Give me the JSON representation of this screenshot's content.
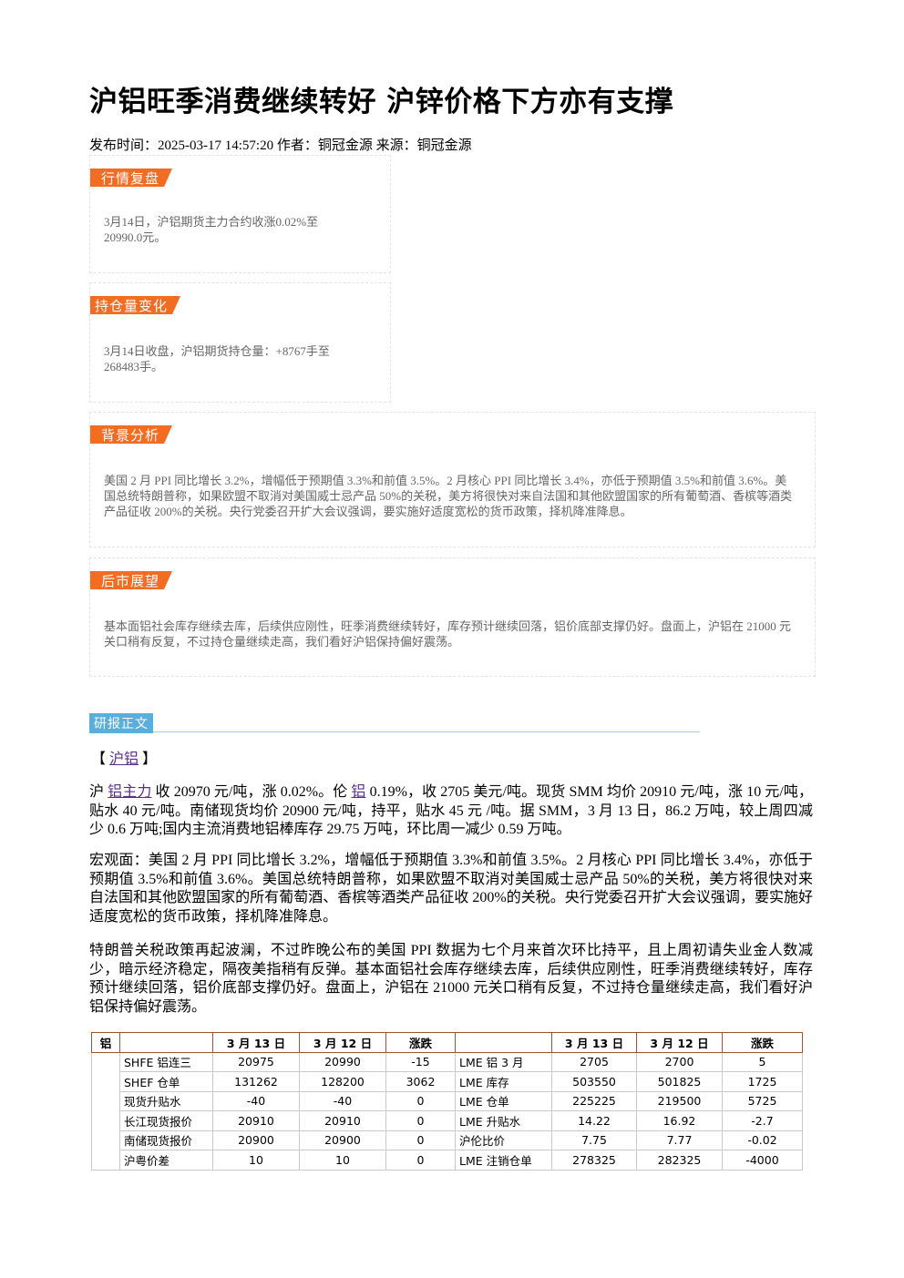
{
  "header": {
    "title": "沪铝旺季消费继续转好 沪锌价格下方亦有支撑",
    "meta": "发布时间：2025-03-17 14:57:20 作者：铜冠金源 来源：铜冠金源"
  },
  "sections": [
    {
      "heading": "行情复盘",
      "text": "3月14日，沪铝期货主力合约收涨0.02%至20990.0元。"
    },
    {
      "heading": "持仓量变化",
      "text": "3月14日收盘，沪铝期货持仓量：+8767手至268483手。"
    },
    {
      "heading": "背景分析",
      "text": "美国 2 月 PPI 同比增长 3.2%，增幅低于预期值 3.3%和前值 3.5%。2 月核心 PPI 同比增长 3.4%，亦低于预期值 3.5%和前值 3.6%。美国总统特朗普称，如果欧盟不取消对美国威士忌产品 50%的关税，美方将很快对来自法国和其他欧盟国家的所有葡萄酒、香槟等酒类产品征收 200%的关税。央行党委召开扩大会议强调，要实施好适度宽松的货币政策，择机降准降息。"
    },
    {
      "heading": "后市展望",
      "text": "基本面铝社会库存继续去库，后续供应刚性，旺季消费继续转好，库存预计继续回落，铝价底部支撑仍好。盘面上，沪铝在 21000 元关口稍有反复，不过持仓量继续走高，我们看好沪铝保持偏好震荡。"
    }
  ],
  "report": {
    "label": "研报正文",
    "tag": [
      "【",
      "沪铝",
      "】"
    ],
    "paragraph1": [
      "沪 ",
      "铝主力",
      "收 20970 元/吨，涨 0.02%。伦 ",
      "铝",
      "0.19%，收 2705 美元/吨。现货 SMM 均价 20910 元/吨，涨 10 元/吨，贴水 40 元/吨。南储现货均价 20900 元/吨，持平，贴水 45 元 /吨。据 SMM，3 月 13 日，86.2 万吨，较上周四减少 0.6 万吨;国内主流消费地铝棒库存 29.75 万吨，环比周一减少 0.59 万吨。"
    ],
    "paragraph2": "宏观面：美国 2 月 PPI 同比增长 3.2%，增幅低于预期值 3.3%和前值 3.5%。2 月核心 PPI 同比增长 3.4%，亦低于预期值 3.5%和前值 3.6%。美国总统特朗普称，如果欧盟不取消对美国威士忌产品 50%的关税，美方将很快对来自法国和其他欧盟国家的所有葡萄酒、香槟等酒类产品征收 200%的关税。央行党委召开扩大会议强调，要实施好适度宽松的货币政策，择机降准降息。",
    "paragraph3": "特朗普关税政策再起波澜，不过昨晚公布的美国 PPI 数据为七个月来首次环比持平，且上周初请失业金人数减少，暗示经济稳定，隔夜美指稍有反弹。基本面铝社会库存继续去库，后续供应刚性，旺季消费继续转好，库存预计继续回落，铝价底部支撑仍好。盘面上，沪铝在 21000 元关口稍有反复，不过持仓量继续走高，我们看好沪铝保持偏好震荡。"
  },
  "table": {
    "corner": "铝",
    "left_header": [
      "3 月 13 日",
      "3 月 12 日",
      "涨跌"
    ],
    "right_header": [
      "3 月 13 日",
      "3 月 12 日",
      "涨跌"
    ],
    "rows": [
      [
        [
          "SHFE 铝连三",
          "20975",
          "20990",
          "-15"
        ],
        [
          "LME 铝 3 月",
          "2705",
          "2700",
          "5"
        ]
      ],
      [
        [
          "SHEF 仓单",
          "131262",
          "128200",
          "3062"
        ],
        [
          "LME 库存",
          "503550",
          "501825",
          "1725"
        ]
      ],
      [
        [
          "现货升贴水",
          "-40",
          "-40",
          "0"
        ],
        [
          "LME 仓单",
          "225225",
          "219500",
          "5725"
        ]
      ],
      [
        [
          "长江现货报价",
          "20910",
          "20910",
          "0"
        ],
        [
          "LME 升贴水",
          "14.22",
          "16.92",
          "-2.7"
        ]
      ],
      [
        [
          "南储现货报价",
          "20900",
          "20900",
          "0"
        ],
        [
          "沪伦比价",
          "7.75",
          "7.77",
          "-0.02"
        ]
      ],
      [
        [
          "沪粤价差",
          "10",
          "10",
          "0"
        ],
        [
          "LME 注销仓单",
          "278325",
          "282325",
          "-4000"
        ]
      ]
    ]
  }
}
